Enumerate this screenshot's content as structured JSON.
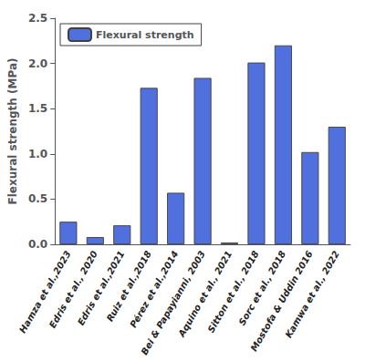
{
  "chart_data": {
    "type": "bar",
    "ylabel": "Flexural strength (MPa)",
    "categories": [
      "Hamza et al.,2023",
      "Edris et al., 2020",
      "Edris et al.,2021",
      "Ruiz et al.,2018",
      "Pérez et al.,2014",
      "Bei & Papayianni, 2003",
      "Aquino et al., 2021",
      "Sitton et al., 2018",
      "Sorc et al., 2018",
      "Mostofa & Uddin 2016",
      "Kamwa et al., 2022"
    ],
    "series": [
      {
        "name": "Flexural strength",
        "values": [
          0.25,
          0.08,
          0.21,
          1.73,
          0.57,
          1.84,
          0.02,
          2.01,
          2.2,
          1.02,
          1.3
        ]
      }
    ],
    "ylim": [
      0,
      2.5
    ],
    "yticks": [
      {
        "value": 0,
        "label": "0.0"
      },
      0.5,
      {
        "value": 1,
        "label": "1.0"
      },
      1.5,
      {
        "value": 2,
        "label": "2.0"
      },
      2.5
    ],
    "legend": "upper left",
    "grid": false
  }
}
